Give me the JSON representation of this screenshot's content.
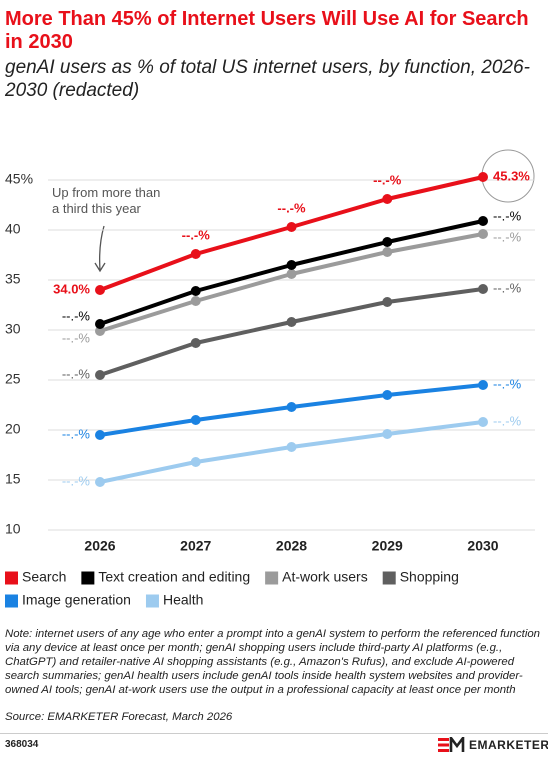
{
  "chart_data": {
    "type": "line",
    "title": "More Than 45% of Internet Users Will Use AI for Search in 2030",
    "subtitle": "genAI users as % of total US internet users, by function, 2026-2030 (redacted)",
    "annotation": "Up from more than a third this year",
    "categories": [
      "2026",
      "2027",
      "2028",
      "2029",
      "2030"
    ],
    "ylim": [
      10,
      45
    ],
    "yticks": [
      10,
      15,
      20,
      25,
      30,
      35,
      40,
      {
        "value": 45,
        "label": "45%"
      }
    ],
    "grid": true,
    "series": [
      {
        "name": "Search",
        "color": "#e8101a",
        "values": [
          34.0,
          37.6,
          40.3,
          43.1,
          45.3
        ],
        "value_labels": [
          "34.0%",
          "--.-%",
          "--.-%",
          "--.-%",
          "45.3%"
        ]
      },
      {
        "name": "Text creation and editing",
        "color": "#000000",
        "values": [
          30.6,
          33.9,
          36.5,
          38.8,
          40.9
        ],
        "value_labels": [
          "--.-%",
          null,
          null,
          null,
          "--.-%"
        ]
      },
      {
        "name": "At-work users",
        "color": "#9b9b9b",
        "values": [
          29.9,
          32.9,
          35.6,
          37.8,
          39.6
        ],
        "value_labels": [
          "--.-%",
          null,
          null,
          null,
          "--.-%"
        ]
      },
      {
        "name": "Shopping",
        "color": "#5f5f5f",
        "values": [
          25.5,
          28.7,
          30.8,
          32.8,
          34.1
        ],
        "value_labels": [
          "--.-%",
          null,
          null,
          null,
          "--.-%"
        ]
      },
      {
        "name": "Image generation",
        "color": "#1a82e2",
        "values": [
          19.5,
          21.0,
          22.3,
          23.5,
          24.5
        ],
        "value_labels": [
          "--.-%",
          null,
          null,
          null,
          "--.-%"
        ]
      },
      {
        "name": "Health",
        "color": "#9dcbef",
        "values": [
          14.8,
          16.8,
          18.3,
          19.6,
          20.8
        ],
        "value_labels": [
          "--.-%",
          null,
          null,
          null,
          "--.-%"
        ]
      }
    ]
  },
  "note": "Note: internet users of any age who enter a prompt into a genAI system to perform the referenced function via any device at least once per month; genAI shopping users include third-party AI platforms (e.g., ChatGPT) and retailer-native AI shopping assistants (e.g., Amazon's Rufus), and exclude AI-powered search summaries; genAI health users include genAI tools inside health system websites and provider-owned AI tools; genAI at-work users use the output in a professional capacity at least once per month",
  "source": "Source: EMARKETER Forecast, March 2026",
  "footer": {
    "id": "368034",
    "brand": "EMARKETER"
  }
}
